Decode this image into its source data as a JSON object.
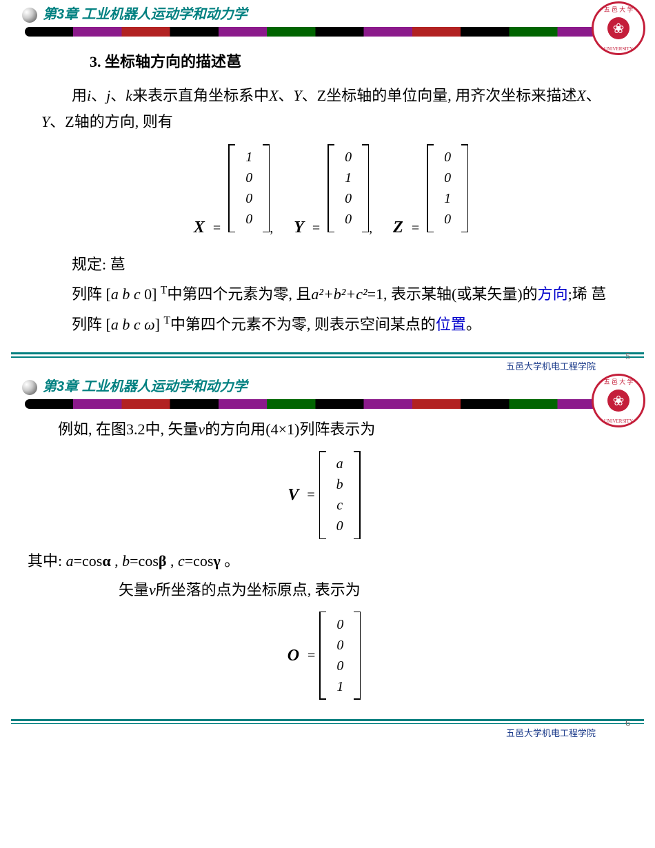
{
  "chapter_title": "第3章  工业机器人运动学和动力学",
  "seal": {
    "top_text": "五 邑 大 学",
    "bottom_text": "UNIVERSITY",
    "symbol": "❀"
  },
  "slide1": {
    "heading": "3. 坐标轴方向的描述䓃",
    "p1_a": "用",
    "p1_i": "i",
    "p1_b": "、",
    "p1_j": "j",
    "p1_c": "、",
    "p1_k": "k",
    "p1_d": "来表示直角坐标系中",
    "p1_X": "X",
    "p1_e": "、",
    "p1_Y": "Y",
    "p1_f": "、Z坐标轴的单位向量, 用齐次坐标来描述",
    "p1_X2": "X",
    "p1_g": "、",
    "p1_Y2": "Y",
    "p1_h": "、Z轴的方向, 则有",
    "matX": {
      "label": "X",
      "values": [
        "1",
        "0",
        "0",
        "0"
      ]
    },
    "matY": {
      "label": "Y",
      "values": [
        "0",
        "1",
        "0",
        "0"
      ]
    },
    "matZ": {
      "label": "Z",
      "values": [
        "0",
        "0",
        "1",
        "0"
      ]
    },
    "rule_label": "规定: 䓃",
    "p2_a": "列阵 [",
    "p2_abc": "a  b  c",
    "p2_b": " 0] ",
    "p2_T": "T",
    "p2_c": "中第四个元素为零, 且",
    "p2_eq": "a²+b²+c²",
    "p2_d": "=1, 表示某轴(或某矢量)的",
    "p2_dir": "方向",
    "p2_e": ";琋 䓃",
    "p3_a": "列阵 [",
    "p3_abc": "a b c ω",
    "p3_b": "] ",
    "p3_T": "T",
    "p3_c": "中第四个元素不为零, 则表示空间某点的",
    "p3_pos": "位置",
    "p3_d": "。",
    "footer": "五邑大学机电工程学院",
    "page_num": "5"
  },
  "slide2": {
    "p1_a": "例如, 在图3.2中, 矢量",
    "p1_v": "v",
    "p1_b": "的方向用(4×1)列阵表示为",
    "matV": {
      "label": "V",
      "values": [
        "a",
        "b",
        "c",
        "0"
      ]
    },
    "p2_a": "其中: ",
    "p2_b": "a",
    "p2_c": "=cos",
    "p2_alpha": "α",
    "p2_d": " , ",
    "p2_e": "b",
    "p2_f": "=cos",
    "p2_beta": "β",
    "p2_g": " , ",
    "p2_h": "c",
    "p2_i": "=cos",
    "p2_gamma": "γ",
    "p2_j": " 。",
    "p3_a": "矢量",
    "p3_v": "v",
    "p3_b": "所坐落的点为坐标原点, 表示为",
    "matO": {
      "label": "O",
      "values": [
        "0",
        "0",
        "0",
        "1"
      ]
    },
    "footer": "五邑大学机电工程学院",
    "page_num": "6"
  },
  "colors": {
    "teal": "#008080",
    "blue": "#0000CC",
    "seal_red": "#C41E3A",
    "footer_blue": "#1a3a8a"
  }
}
